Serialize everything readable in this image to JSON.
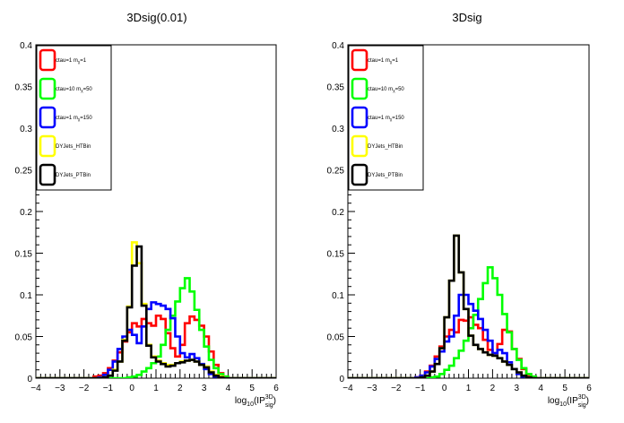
{
  "chart_data": [
    {
      "type": "line",
      "title": "3Dsig(0.01)",
      "xlabel": "log10(IP^3D_sig)",
      "ylabel": "",
      "xlim": [
        -4,
        6
      ],
      "ylim": [
        0,
        0.4
      ],
      "xticks": [
        "−4",
        "−3",
        "−2",
        "−1",
        "0",
        "1",
        "2",
        "3",
        "4",
        "5",
        "6"
      ],
      "yticks": [
        "0",
        "0.05",
        "0.1",
        "0.15",
        "0.2",
        "0.25",
        "0.3",
        "0.35",
        "0.4"
      ],
      "legend_position": "top-left",
      "series": [
        {
          "name": "ctau=1 m_X=1",
          "color": "#ff0000",
          "x": [
            -4,
            -3.8,
            -3.6,
            -3.4,
            -3.2,
            -3,
            -2.8,
            -2.6,
            -2.4,
            -2.2,
            -2,
            -1.8,
            -1.6,
            -1.4,
            -1.2,
            -1,
            -0.8,
            -0.6,
            -0.4,
            -0.2,
            0,
            0.2,
            0.4,
            0.6,
            0.8,
            1,
            1.2,
            1.4,
            1.6,
            1.8,
            2,
            2.2,
            2.4,
            2.6,
            2.8,
            3,
            3.2,
            3.4,
            3.6,
            3.8,
            4,
            4.2,
            4.4,
            4.6,
            4.8,
            5,
            5.2,
            5.4,
            5.6,
            5.8
          ],
          "values": [
            0,
            0,
            0,
            0,
            0,
            0,
            0,
            0,
            0,
            0,
            0,
            0,
            0.002,
            0.003,
            0.006,
            0.012,
            0.021,
            0.031,
            0.044,
            0.055,
            0.066,
            0.062,
            0.071,
            0.066,
            0.063,
            0.075,
            0.071,
            0.054,
            0.036,
            0.026,
            0.04,
            0.066,
            0.074,
            0.07,
            0.063,
            0.05,
            0.032,
            0.016,
            0.006,
            0.002,
            0,
            0,
            0,
            0,
            0,
            0,
            0,
            0,
            0,
            0
          ]
        },
        {
          "name": "ctau=10 m_X=50",
          "color": "#00ff00",
          "x": [
            -4,
            -3.8,
            -3.6,
            -3.4,
            -3.2,
            -3,
            -2.8,
            -2.6,
            -2.4,
            -2.2,
            -2,
            -1.8,
            -1.6,
            -1.4,
            -1.2,
            -1,
            -0.8,
            -0.6,
            -0.4,
            -0.2,
            0,
            0.2,
            0.4,
            0.6,
            0.8,
            1,
            1.2,
            1.4,
            1.6,
            1.8,
            2,
            2.2,
            2.4,
            2.6,
            2.8,
            3,
            3.2,
            3.4,
            3.6,
            3.8,
            4,
            4.2,
            4.4,
            4.6,
            4.8,
            5,
            5.2,
            5.4,
            5.6,
            5.8
          ],
          "values": [
            0,
            0,
            0,
            0,
            0,
            0,
            0,
            0,
            0,
            0,
            0,
            0,
            0,
            0,
            0,
            0,
            0,
            0,
            0,
            0.001,
            0.002,
            0.004,
            0.008,
            0.012,
            0.018,
            0.026,
            0.04,
            0.058,
            0.075,
            0.092,
            0.108,
            0.12,
            0.104,
            0.082,
            0.058,
            0.038,
            0.022,
            0.012,
            0.005,
            0.002,
            0,
            0,
            0,
            0,
            0,
            0,
            0,
            0,
            0,
            0
          ]
        },
        {
          "name": "ctau=1 m_X=150",
          "color": "#0000ff",
          "x": [
            -4,
            -3.8,
            -3.6,
            -3.4,
            -3.2,
            -3,
            -2.8,
            -2.6,
            -2.4,
            -2.2,
            -2,
            -1.8,
            -1.6,
            -1.4,
            -1.2,
            -1,
            -0.8,
            -0.6,
            -0.4,
            -0.2,
            0,
            0.2,
            0.4,
            0.6,
            0.8,
            1,
            1.2,
            1.4,
            1.6,
            1.8,
            2,
            2.2,
            2.4,
            2.6,
            2.8,
            3,
            3.2,
            3.4,
            3.6,
            3.8,
            4,
            4.2,
            4.4,
            4.6,
            4.8,
            5,
            5.2,
            5.4,
            5.6,
            5.8
          ],
          "values": [
            0,
            0,
            0,
            0,
            0,
            0,
            0,
            0,
            0,
            0,
            0,
            0,
            0,
            0.001,
            0.004,
            0.01,
            0.02,
            0.035,
            0.05,
            0.058,
            0.052,
            0.042,
            0.062,
            0.083,
            0.091,
            0.089,
            0.087,
            0.083,
            0.072,
            0.05,
            0.03,
            0.025,
            0.029,
            0.024,
            0.017,
            0.011,
            0.005,
            0.002,
            0,
            0,
            0,
            0,
            0,
            0,
            0,
            0,
            0,
            0,
            0,
            0
          ]
        },
        {
          "name": "DYJets_HTBin",
          "color": "#ffff00",
          "x": [
            -4,
            -3.8,
            -3.6,
            -3.4,
            -3.2,
            -3,
            -2.8,
            -2.6,
            -2.4,
            -2.2,
            -2,
            -1.8,
            -1.6,
            -1.4,
            -1.2,
            -1,
            -0.8,
            -0.6,
            -0.4,
            -0.2,
            0,
            0.2,
            0.4,
            0.6,
            0.8,
            1,
            1.2,
            1.4,
            1.6,
            1.8,
            2,
            2.2,
            2.4,
            2.6,
            2.8,
            3,
            3.2,
            3.4,
            3.6,
            3.8,
            4,
            4.2,
            4.4,
            4.6,
            4.8,
            5,
            5.2,
            5.4,
            5.6,
            5.8
          ],
          "values": [
            0,
            0,
            0,
            0,
            0,
            0,
            0,
            0,
            0,
            0,
            0,
            0,
            0,
            0,
            0.001,
            0.003,
            0.01,
            0.02,
            0.046,
            0.086,
            0.163,
            0.138,
            0.089,
            0.04,
            0.026,
            0.021,
            0.018,
            0.016,
            0.016,
            0.018,
            0.02,
            0.021,
            0.022,
            0.02,
            0.016,
            0.014,
            0.008,
            0.004,
            0.002,
            0,
            0,
            0,
            0,
            0,
            0,
            0,
            0,
            0,
            0,
            0
          ]
        },
        {
          "name": "DYJets_PTBin",
          "color": "#000000",
          "x": [
            -4,
            -3.8,
            -3.6,
            -3.4,
            -3.2,
            -3,
            -2.8,
            -2.6,
            -2.4,
            -2.2,
            -2,
            -1.8,
            -1.6,
            -1.4,
            -1.2,
            -1,
            -0.8,
            -0.6,
            -0.4,
            -0.2,
            0,
            0.2,
            0.4,
            0.6,
            0.8,
            1,
            1.2,
            1.4,
            1.6,
            1.8,
            2,
            2.2,
            2.4,
            2.6,
            2.8,
            3,
            3.2,
            3.4,
            3.6,
            3.8,
            4,
            4.2,
            4.4,
            4.6,
            4.8,
            5,
            5.2,
            5.4,
            5.6,
            5.8
          ],
          "values": [
            0,
            0,
            0,
            0,
            0,
            0,
            0,
            0,
            0,
            0,
            0,
            0,
            0,
            0,
            0.001,
            0.003,
            0.009,
            0.02,
            0.045,
            0.085,
            0.135,
            0.158,
            0.087,
            0.039,
            0.025,
            0.02,
            0.017,
            0.014,
            0.015,
            0.018,
            0.019,
            0.021,
            0.022,
            0.02,
            0.016,
            0.013,
            0.007,
            0.003,
            0.001,
            0,
            0,
            0,
            0,
            0,
            0,
            0,
            0,
            0,
            0,
            0
          ]
        }
      ]
    },
    {
      "type": "line",
      "title": "3Dsig",
      "xlabel": "log10(IP^3D_sig)",
      "ylabel": "",
      "xlim": [
        -4,
        6
      ],
      "ylim": [
        0,
        0.4
      ],
      "xticks": [
        "−4",
        "−3",
        "−2",
        "−1",
        "0",
        "1",
        "2",
        "3",
        "4",
        "5",
        "6"
      ],
      "yticks": [
        "0",
        "0.05",
        "0.1",
        "0.15",
        "0.2",
        "0.25",
        "0.3",
        "0.35",
        "0.4"
      ],
      "legend_position": "top-left",
      "series": [
        {
          "name": "ctau=1 m_X=1",
          "color": "#ff0000",
          "x": [
            -4,
            -3.8,
            -3.6,
            -3.4,
            -3.2,
            -3,
            -2.8,
            -2.6,
            -2.4,
            -2.2,
            -2,
            -1.8,
            -1.6,
            -1.4,
            -1.2,
            -1,
            -0.8,
            -0.6,
            -0.4,
            -0.2,
            0,
            0.2,
            0.4,
            0.6,
            0.8,
            1,
            1.2,
            1.4,
            1.6,
            1.8,
            2,
            2.2,
            2.4,
            2.6,
            2.8,
            3,
            3.2,
            3.4,
            3.6,
            3.8,
            4,
            4.2,
            4.4,
            4.6,
            4.8,
            5,
            5.2,
            5.4,
            5.6,
            5.8
          ],
          "values": [
            0,
            0,
            0,
            0,
            0,
            0,
            0,
            0,
            0,
            0,
            0,
            0,
            0,
            0,
            0.001,
            0.003,
            0.008,
            0.015,
            0.026,
            0.038,
            0.05,
            0.058,
            0.055,
            0.07,
            0.069,
            0.073,
            0.064,
            0.06,
            0.046,
            0.034,
            0.03,
            0.041,
            0.058,
            0.056,
            0.035,
            0.023,
            0.011,
            0.004,
            0.001,
            0,
            0,
            0,
            0,
            0,
            0,
            0,
            0,
            0,
            0,
            0
          ]
        },
        {
          "name": "ctau=10 m_X=50",
          "color": "#00ff00",
          "x": [
            -4,
            -3.8,
            -3.6,
            -3.4,
            -3.2,
            -3,
            -2.8,
            -2.6,
            -2.4,
            -2.2,
            -2,
            -1.8,
            -1.6,
            -1.4,
            -1.2,
            -1,
            -0.8,
            -0.6,
            -0.4,
            -0.2,
            0,
            0.2,
            0.4,
            0.6,
            0.8,
            1,
            1.2,
            1.4,
            1.6,
            1.8,
            2,
            2.2,
            2.4,
            2.6,
            2.8,
            3,
            3.2,
            3.4,
            3.6,
            3.8,
            4,
            4.2,
            4.4,
            4.6,
            4.8,
            5,
            5.2,
            5.4,
            5.6,
            5.8
          ],
          "values": [
            0,
            0,
            0,
            0,
            0,
            0,
            0,
            0,
            0,
            0,
            0,
            0,
            0,
            0,
            0,
            0,
            0,
            0.001,
            0.002,
            0.005,
            0.01,
            0.015,
            0.024,
            0.033,
            0.045,
            0.06,
            0.076,
            0.095,
            0.114,
            0.133,
            0.12,
            0.1,
            0.077,
            0.055,
            0.035,
            0.022,
            0.012,
            0.005,
            0.002,
            0,
            0,
            0,
            0,
            0,
            0,
            0,
            0,
            0,
            0,
            0
          ]
        },
        {
          "name": "ctau=1 m_X=150",
          "color": "#0000ff",
          "x": [
            -4,
            -3.8,
            -3.6,
            -3.4,
            -3.2,
            -3,
            -2.8,
            -2.6,
            -2.4,
            -2.2,
            -2,
            -1.8,
            -1.6,
            -1.4,
            -1.2,
            -1,
            -0.8,
            -0.6,
            -0.4,
            -0.2,
            0,
            0.2,
            0.4,
            0.6,
            0.8,
            1,
            1.2,
            1.4,
            1.6,
            1.8,
            2,
            2.2,
            2.4,
            2.6,
            2.8,
            3,
            3.2,
            3.4,
            3.6,
            3.8,
            4,
            4.2,
            4.4,
            4.6,
            4.8,
            5,
            5.2,
            5.4,
            5.6,
            5.8
          ],
          "values": [
            0,
            0,
            0,
            0,
            0,
            0,
            0,
            0,
            0,
            0,
            0,
            0,
            0,
            0,
            0.001,
            0.003,
            0.007,
            0.014,
            0.023,
            0.032,
            0.044,
            0.05,
            0.075,
            0.1,
            0.1,
            0.089,
            0.081,
            0.071,
            0.058,
            0.045,
            0.03,
            0.034,
            0.03,
            0.019,
            0.011,
            0.005,
            0.002,
            0,
            0,
            0,
            0,
            0,
            0,
            0,
            0,
            0,
            0,
            0,
            0,
            0
          ]
        },
        {
          "name": "DYJets_HTBin",
          "color": "#ffff00",
          "x": [
            -4,
            -3.8,
            -3.6,
            -3.4,
            -3.2,
            -3,
            -2.8,
            -2.6,
            -2.4,
            -2.2,
            -2,
            -1.8,
            -1.6,
            -1.4,
            -1.2,
            -1,
            -0.8,
            -0.6,
            -0.4,
            -0.2,
            0,
            0.2,
            0.4,
            0.6,
            0.8,
            1,
            1.2,
            1.4,
            1.6,
            1.8,
            2,
            2.2,
            2.4,
            2.6,
            2.8,
            3,
            3.2,
            3.4,
            3.6,
            3.8,
            4,
            4.2,
            4.4,
            4.6,
            4.8,
            5,
            5.2,
            5.4,
            5.6,
            5.8
          ],
          "values": [
            0,
            0,
            0,
            0,
            0,
            0,
            0,
            0,
            0,
            0,
            0,
            0,
            0,
            0,
            0,
            0.001,
            0.003,
            0.008,
            0.017,
            0.036,
            0.073,
            0.117,
            0.171,
            0.127,
            0.083,
            0.051,
            0.04,
            0.035,
            0.031,
            0.028,
            0.027,
            0.024,
            0.02,
            0.016,
            0.011,
            0.007,
            0.003,
            0.001,
            0,
            0,
            0,
            0,
            0,
            0,
            0,
            0,
            0,
            0,
            0,
            0
          ]
        },
        {
          "name": "DYJets_PTBin",
          "color": "#000000",
          "x": [
            -4,
            -3.8,
            -3.6,
            -3.4,
            -3.2,
            -3,
            -2.8,
            -2.6,
            -2.4,
            -2.2,
            -2,
            -1.8,
            -1.6,
            -1.4,
            -1.2,
            -1,
            -0.8,
            -0.6,
            -0.4,
            -0.2,
            0,
            0.2,
            0.4,
            0.6,
            0.8,
            1,
            1.2,
            1.4,
            1.6,
            1.8,
            2,
            2.2,
            2.4,
            2.6,
            2.8,
            3,
            3.2,
            3.4,
            3.6,
            3.8,
            4,
            4.2,
            4.4,
            4.6,
            4.8,
            5,
            5.2,
            5.4,
            5.6,
            5.8
          ],
          "values": [
            0,
            0,
            0,
            0,
            0,
            0,
            0,
            0,
            0,
            0,
            0,
            0,
            0,
            0,
            0,
            0.001,
            0.003,
            0.008,
            0.017,
            0.036,
            0.073,
            0.117,
            0.171,
            0.127,
            0.083,
            0.051,
            0.04,
            0.035,
            0.031,
            0.028,
            0.027,
            0.024,
            0.02,
            0.016,
            0.011,
            0.007,
            0.003,
            0.001,
            0,
            0,
            0,
            0,
            0,
            0,
            0,
            0,
            0,
            0,
            0,
            0
          ]
        }
      ]
    }
  ]
}
